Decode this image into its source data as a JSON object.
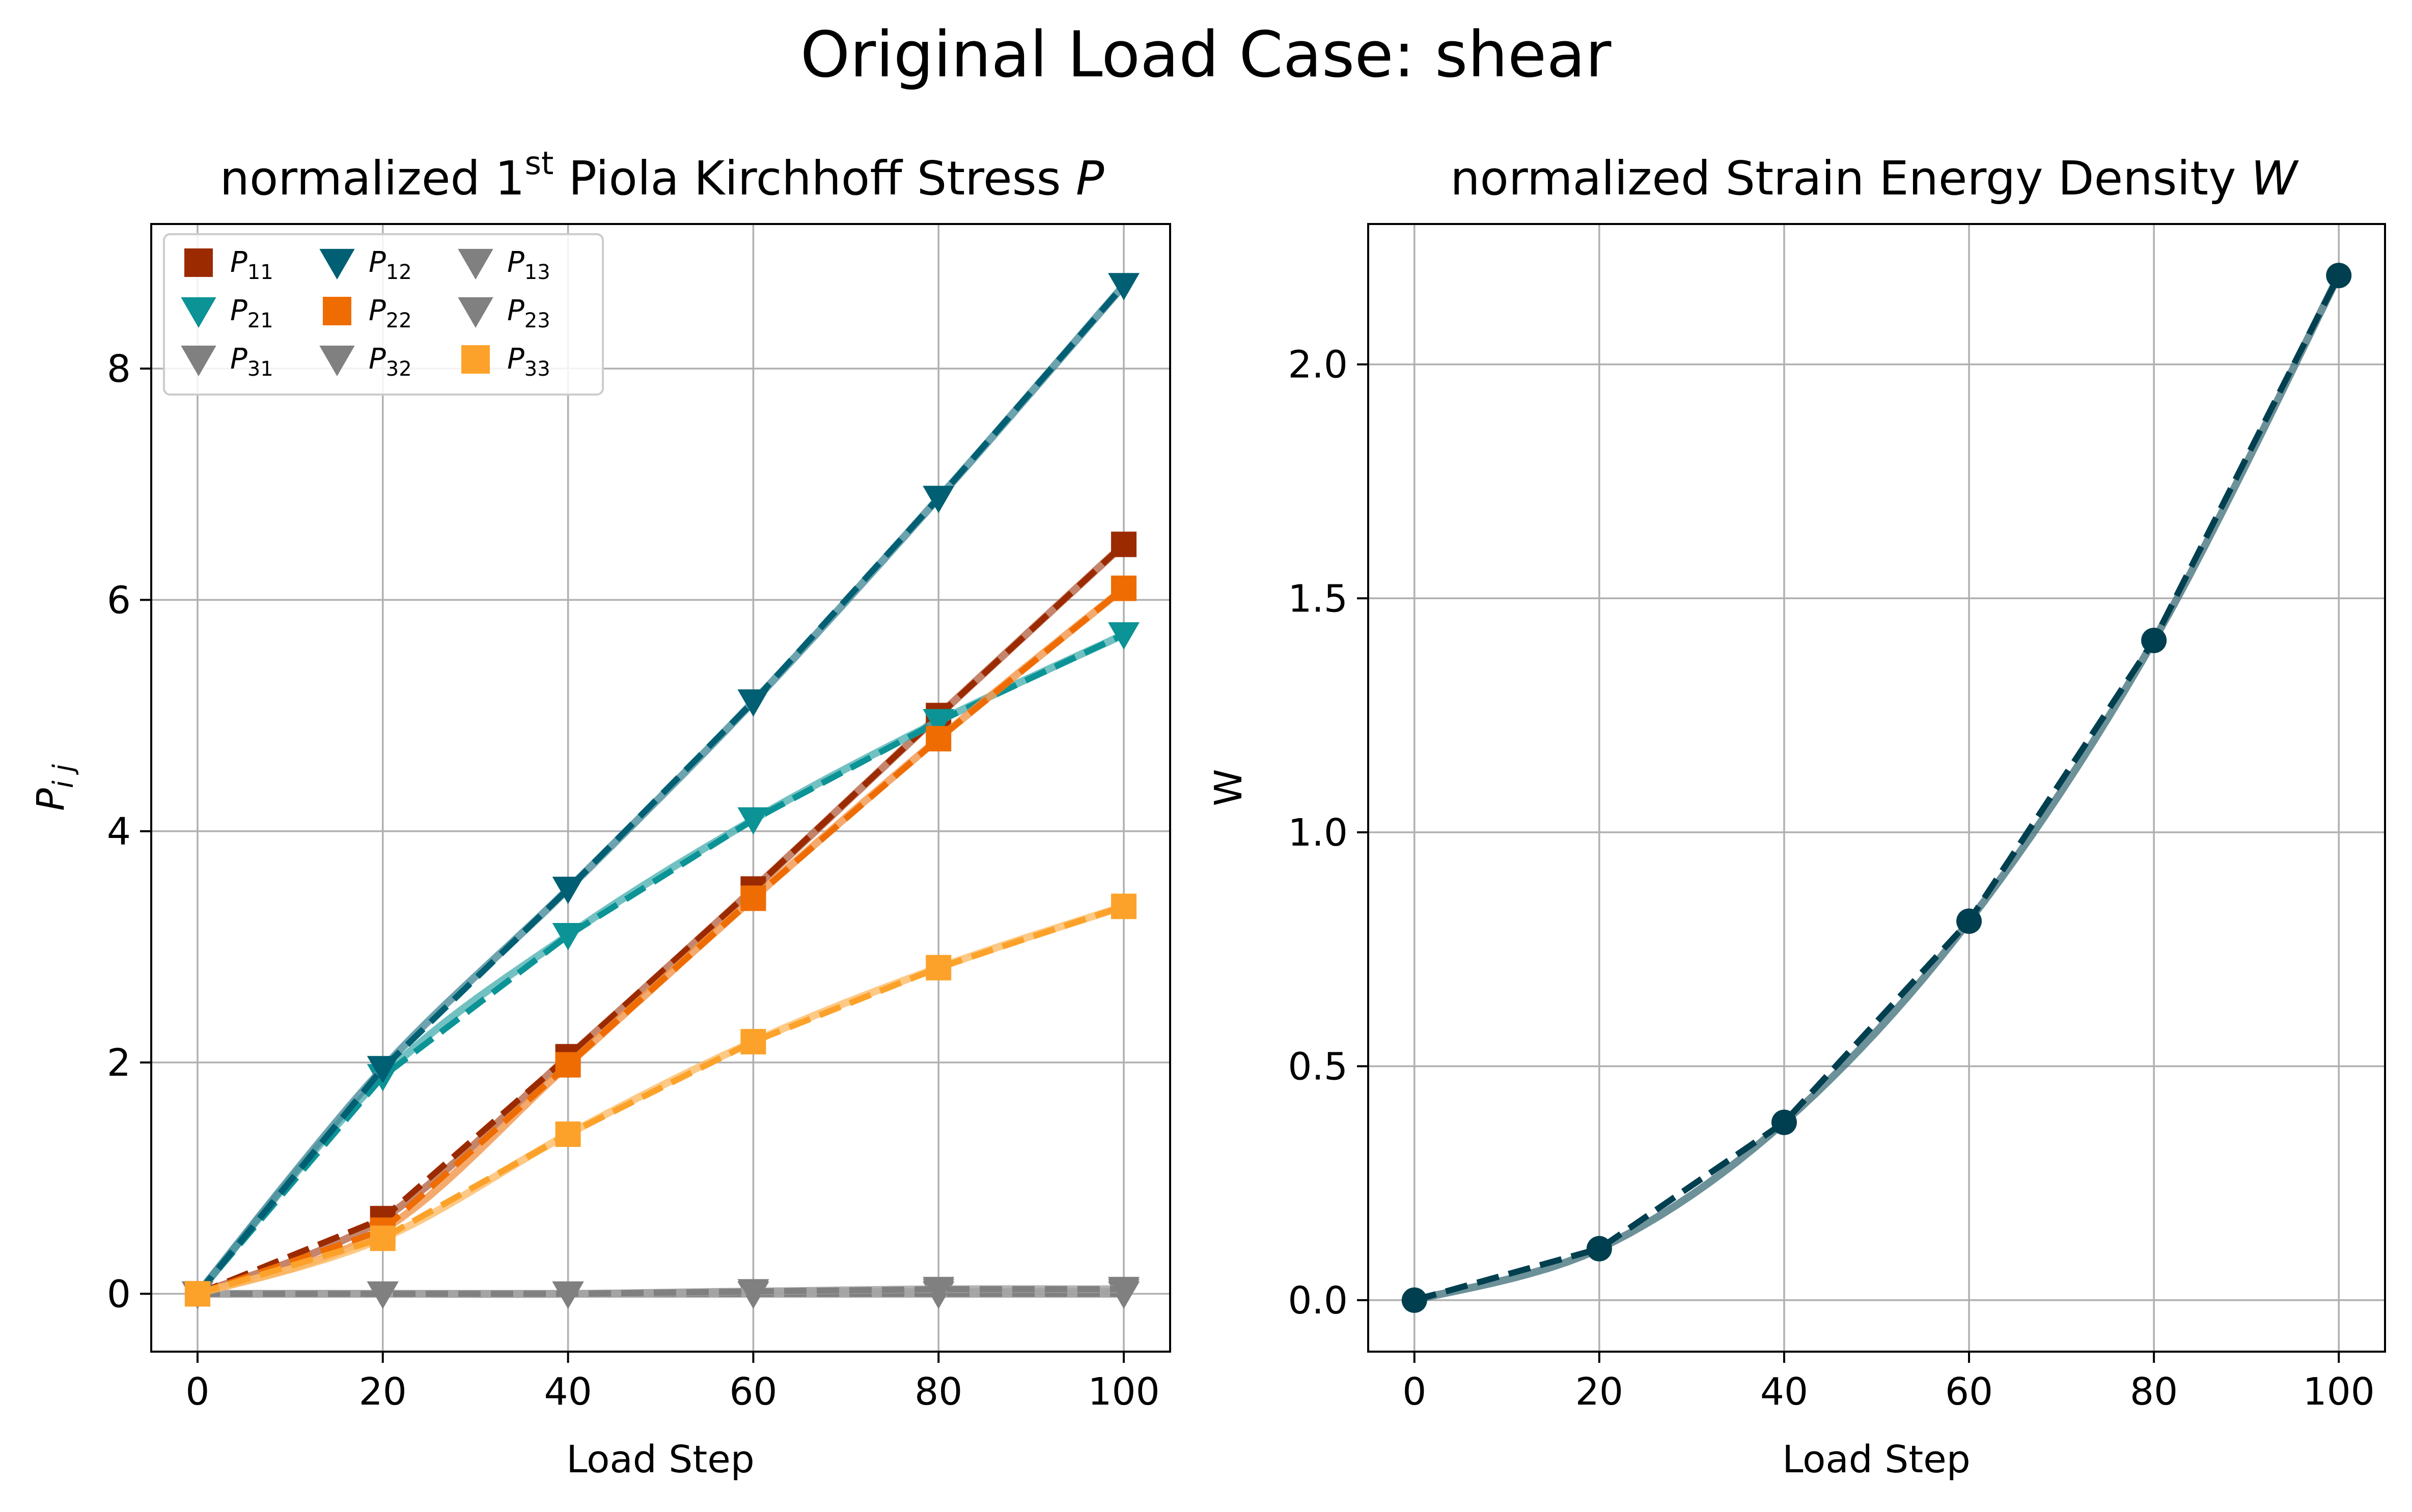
{
  "figure": {
    "suptitle": "Original Load Case: shear"
  },
  "chart_data": [
    {
      "type": "line",
      "title": "normalized 1st Piola Kirchhoff Stress P",
      "title_parts": {
        "pre": "normalized 1",
        "sup": "st",
        "mid": " Piola Kirchhoff Stress ",
        "italic": "P"
      },
      "xlabel": "Load Step",
      "ylabel": "P_ij",
      "ylabel_parts": {
        "main": "P",
        "sub": "i j"
      },
      "xlim": [
        -5,
        105
      ],
      "ylim": [
        -0.5,
        9.25
      ],
      "xticks": [
        0,
        20,
        40,
        60,
        80,
        100
      ],
      "yticks": [
        0,
        2,
        4,
        6,
        8
      ],
      "grid": true,
      "legend": {
        "placement": "top-left",
        "columns": 3
      },
      "x": [
        0,
        20,
        40,
        60,
        80,
        100
      ],
      "series": [
        {
          "name": "P11",
          "label_main": "P",
          "label_sub": "11",
          "color": "#9b2a00",
          "marker": "square",
          "values": [
            0.0,
            0.65,
            2.05,
            3.5,
            5.0,
            6.48
          ]
        },
        {
          "name": "P21",
          "label_main": "P",
          "label_sub": "21",
          "color": "#0b9396",
          "marker": "triangle-down",
          "values": [
            0.0,
            1.88,
            3.1,
            4.1,
            4.95,
            5.7
          ]
        },
        {
          "name": "P31",
          "label_main": "P",
          "label_sub": "31",
          "color": "#808080",
          "marker": "triangle-down",
          "values": [
            0.0,
            0.0,
            0.0,
            0.0,
            0.0,
            0.0
          ]
        },
        {
          "name": "P12",
          "label_main": "P",
          "label_sub": "12",
          "color": "#005f73",
          "marker": "triangle-down",
          "values": [
            0.0,
            1.95,
            3.5,
            5.12,
            6.88,
            8.72
          ]
        },
        {
          "name": "P22",
          "label_main": "P",
          "label_sub": "22",
          "color": "#ee6c02",
          "marker": "square",
          "values": [
            0.0,
            0.55,
            1.98,
            3.42,
            4.8,
            6.1
          ]
        },
        {
          "name": "P32",
          "label_main": "P",
          "label_sub": "32",
          "color": "#808080",
          "marker": "triangle-down",
          "values": [
            0.0,
            0.0,
            0.0,
            0.02,
            0.02,
            0.02
          ]
        },
        {
          "name": "P13",
          "label_main": "P",
          "label_sub": "13",
          "color": "#808080",
          "marker": "triangle-down",
          "values": [
            0.0,
            0.0,
            0.0,
            0.0,
            0.0,
            0.0
          ]
        },
        {
          "name": "P23",
          "label_main": "P",
          "label_sub": "23",
          "color": "#808080",
          "marker": "triangle-down",
          "values": [
            0.0,
            0.0,
            0.0,
            0.02,
            0.04,
            0.04
          ]
        },
        {
          "name": "P33",
          "label_main": "P",
          "label_sub": "33",
          "color": "#fca22a",
          "marker": "square",
          "values": [
            0.0,
            0.48,
            1.38,
            2.18,
            2.82,
            3.35
          ]
        }
      ]
    },
    {
      "type": "line",
      "title": "normalized Strain Energy Density W",
      "title_parts": {
        "pre": "normalized Strain Energy Density ",
        "italic": "W"
      },
      "xlabel": "Load Step",
      "ylabel": "W",
      "xlim": [
        -5,
        105
      ],
      "ylim": [
        -0.11,
        2.3
      ],
      "xticks": [
        0,
        20,
        40,
        60,
        80,
        100
      ],
      "yticks": [
        0.0,
        0.5,
        1.0,
        1.5,
        2.0
      ],
      "ytick_labels": [
        "0.0",
        "0.5",
        "1.0",
        "1.5",
        "2.0"
      ],
      "grid": true,
      "x": [
        0,
        20,
        40,
        60,
        80,
        100
      ],
      "series": [
        {
          "color": "#003f4f",
          "marker": "circle",
          "values": [
            0.0,
            0.11,
            0.38,
            0.81,
            1.41,
            2.19
          ]
        }
      ]
    }
  ]
}
